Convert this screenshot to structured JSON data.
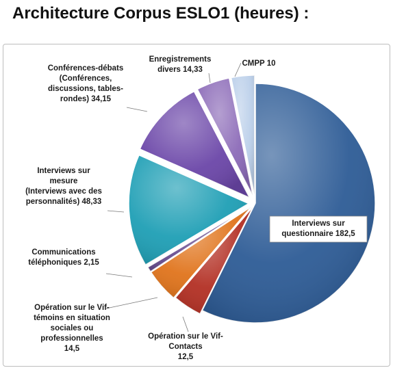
{
  "title": "Architecture Corpus ESLO1 (heures) :",
  "chart_data": {
    "type": "pie",
    "exploded": true,
    "slices": [
      {
        "label": "Interviews sur questionnaire",
        "value": 182.5,
        "label_lines": [
          "Interviews sur",
          "questionnaire  182,5"
        ],
        "color": "#2e5c96"
      },
      {
        "label": "Opération sur le Vif-Contacts",
        "value": 12.5,
        "label_lines": [
          "Opération sur le Vif-",
          "Contacts",
          "12,5"
        ],
        "color": "#b33024"
      },
      {
        "label": "Opération sur le Vif-témoins en situation sociales ou professionnelles",
        "value": 14.5,
        "label_lines": [
          "Opération sur le Vif-",
          "témoins en situation",
          "sociales ou",
          "professionnelles",
          "14,5"
        ],
        "color": "#e0741c"
      },
      {
        "label": "Communications téléphoniques",
        "value": 2.15,
        "label_lines": [
          "Communications",
          "téléphoniques 2,15"
        ],
        "color": "#6a4f92"
      },
      {
        "label": "Interviews sur mesure (Interviews avec des personnalités)",
        "value": 48.33,
        "label_lines": [
          "Interviews sur",
          "mesure",
          "(Interviews avec des",
          "personnalités) 48,33"
        ],
        "color": "#1f9fb5"
      },
      {
        "label": "Conférences-débats (Conférences, discussions, tables-rondes)",
        "value": 34.15,
        "label_lines": [
          "Conférences-débats",
          "(Conférences,",
          "discussions, tables-",
          "rondes) 34,15"
        ],
        "color": "#6b46a8"
      },
      {
        "label": "Enregistrements divers",
        "value": 14.33,
        "label_lines": [
          "Enregistrements",
          "divers 14,33"
        ],
        "color": "#8c6bb8"
      },
      {
        "label": "CMPP",
        "value": 10,
        "label_lines": [
          "CMPP 10"
        ],
        "color": "#bcd0ea"
      }
    ]
  }
}
